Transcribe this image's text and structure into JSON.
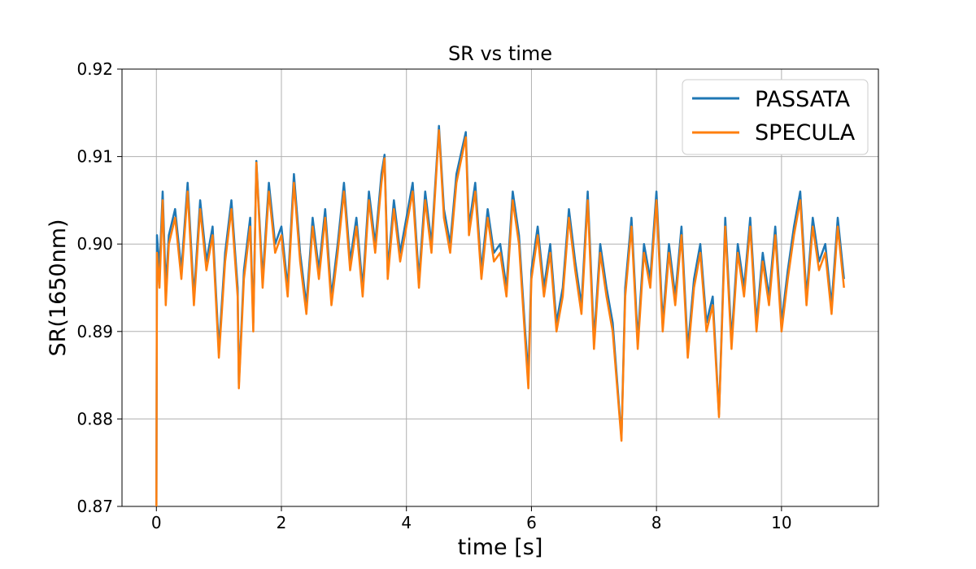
{
  "chart_data": {
    "type": "line",
    "title": "SR vs time",
    "xlabel": "time [s]",
    "ylabel": "SR(1650nm)",
    "xlim": [
      -0.55,
      11.55
    ],
    "ylim": [
      0.87,
      0.92
    ],
    "xticks": [
      0,
      2,
      4,
      6,
      8,
      10
    ],
    "yticks": [
      0.87,
      0.88,
      0.89,
      0.9,
      0.91,
      0.92
    ],
    "xtick_labels": [
      "0",
      "2",
      "4",
      "6",
      "8",
      "10"
    ],
    "ytick_labels": [
      "0.87",
      "0.88",
      "0.89",
      "0.90",
      "0.91",
      "0.92"
    ],
    "grid": true,
    "legend_position": "top-right",
    "series": [
      {
        "name": "PASSATA",
        "color": "#1f77b4",
        "x": [
          0.0,
          0.01,
          0.05,
          0.1,
          0.15,
          0.2,
          0.3,
          0.4,
          0.5,
          0.6,
          0.7,
          0.8,
          0.9,
          1.0,
          1.1,
          1.2,
          1.3,
          1.32,
          1.4,
          1.5,
          1.55,
          1.6,
          1.7,
          1.8,
          1.9,
          2.0,
          2.1,
          2.2,
          2.3,
          2.4,
          2.5,
          2.6,
          2.7,
          2.8,
          2.9,
          3.0,
          3.1,
          3.2,
          3.3,
          3.4,
          3.5,
          3.6,
          3.65,
          3.7,
          3.8,
          3.9,
          4.0,
          4.1,
          4.2,
          4.3,
          4.4,
          4.52,
          4.6,
          4.7,
          4.8,
          4.95,
          5.0,
          5.1,
          5.2,
          5.3,
          5.4,
          5.5,
          5.6,
          5.7,
          5.8,
          5.9,
          5.95,
          6.0,
          6.1,
          6.2,
          6.3,
          6.4,
          6.5,
          6.6,
          6.7,
          6.8,
          6.9,
          7.0,
          7.1,
          7.2,
          7.3,
          7.44,
          7.5,
          7.6,
          7.7,
          7.8,
          7.9,
          8.0,
          8.1,
          8.2,
          8.3,
          8.4,
          8.5,
          8.6,
          8.7,
          8.8,
          8.9,
          9.0,
          9.1,
          9.2,
          9.3,
          9.4,
          9.5,
          9.6,
          9.7,
          9.8,
          9.9,
          10.0,
          10.1,
          10.2,
          10.3,
          10.4,
          10.5,
          10.6,
          10.7,
          10.8,
          10.9,
          11.0
        ],
        "values": [
          0.87,
          0.901,
          0.897,
          0.906,
          0.895,
          0.901,
          0.904,
          0.897,
          0.907,
          0.894,
          0.905,
          0.898,
          0.902,
          0.888,
          0.899,
          0.905,
          0.895,
          0.884,
          0.897,
          0.903,
          0.891,
          0.9095,
          0.896,
          0.907,
          0.9,
          0.902,
          0.895,
          0.908,
          0.899,
          0.893,
          0.903,
          0.897,
          0.904,
          0.894,
          0.9,
          0.907,
          0.898,
          0.903,
          0.895,
          0.906,
          0.9,
          0.908,
          0.9102,
          0.897,
          0.905,
          0.899,
          0.903,
          0.907,
          0.896,
          0.906,
          0.9,
          0.9135,
          0.904,
          0.9,
          0.908,
          0.9128,
          0.902,
          0.907,
          0.897,
          0.904,
          0.899,
          0.9,
          0.895,
          0.906,
          0.901,
          0.89,
          0.885,
          0.897,
          0.902,
          0.895,
          0.9,
          0.891,
          0.895,
          0.904,
          0.898,
          0.893,
          0.906,
          0.889,
          0.9,
          0.895,
          0.891,
          0.8778,
          0.895,
          0.903,
          0.889,
          0.9,
          0.896,
          0.906,
          0.891,
          0.9,
          0.894,
          0.902,
          0.888,
          0.896,
          0.9,
          0.891,
          0.894,
          0.8805,
          0.903,
          0.889,
          0.9,
          0.895,
          0.903,
          0.891,
          0.899,
          0.894,
          0.902,
          0.891,
          0.897,
          0.902,
          0.906,
          0.894,
          0.903,
          0.898,
          0.9,
          0.893,
          0.903,
          0.896
        ]
      },
      {
        "name": "SPECULA",
        "color": "#ff7f0e",
        "x": [
          0.0,
          0.01,
          0.05,
          0.1,
          0.15,
          0.2,
          0.3,
          0.4,
          0.5,
          0.6,
          0.7,
          0.8,
          0.9,
          1.0,
          1.1,
          1.2,
          1.3,
          1.32,
          1.4,
          1.5,
          1.55,
          1.6,
          1.7,
          1.8,
          1.9,
          2.0,
          2.1,
          2.2,
          2.3,
          2.4,
          2.5,
          2.6,
          2.7,
          2.8,
          2.9,
          3.0,
          3.1,
          3.2,
          3.3,
          3.4,
          3.5,
          3.6,
          3.65,
          3.7,
          3.8,
          3.9,
          4.0,
          4.1,
          4.2,
          4.3,
          4.4,
          4.52,
          4.6,
          4.7,
          4.8,
          4.95,
          5.0,
          5.1,
          5.2,
          5.3,
          5.4,
          5.5,
          5.6,
          5.7,
          5.8,
          5.9,
          5.95,
          6.0,
          6.1,
          6.2,
          6.3,
          6.4,
          6.5,
          6.6,
          6.7,
          6.8,
          6.9,
          7.0,
          7.1,
          7.2,
          7.3,
          7.44,
          7.5,
          7.6,
          7.7,
          7.8,
          7.9,
          8.0,
          8.1,
          8.2,
          8.3,
          8.4,
          8.5,
          8.6,
          8.7,
          8.8,
          8.9,
          9.0,
          9.1,
          9.2,
          9.3,
          9.4,
          9.5,
          9.6,
          9.7,
          9.8,
          9.9,
          10.0,
          10.1,
          10.2,
          10.3,
          10.4,
          10.5,
          10.6,
          10.7,
          10.8,
          10.9,
          11.0
        ],
        "values": [
          0.87,
          0.899,
          0.895,
          0.905,
          0.893,
          0.9,
          0.903,
          0.896,
          0.906,
          0.893,
          0.904,
          0.897,
          0.901,
          0.887,
          0.898,
          0.904,
          0.894,
          0.8835,
          0.896,
          0.902,
          0.89,
          0.9093,
          0.895,
          0.906,
          0.899,
          0.901,
          0.894,
          0.907,
          0.898,
          0.892,
          0.902,
          0.896,
          0.903,
          0.893,
          0.899,
          0.906,
          0.897,
          0.902,
          0.894,
          0.905,
          0.899,
          0.907,
          0.9098,
          0.896,
          0.904,
          0.898,
          0.902,
          0.906,
          0.895,
          0.905,
          0.899,
          0.913,
          0.903,
          0.899,
          0.907,
          0.9122,
          0.901,
          0.906,
          0.896,
          0.903,
          0.898,
          0.899,
          0.894,
          0.905,
          0.9,
          0.889,
          0.8835,
          0.896,
          0.901,
          0.894,
          0.899,
          0.89,
          0.894,
          0.903,
          0.897,
          0.892,
          0.905,
          0.888,
          0.899,
          0.894,
          0.89,
          0.8775,
          0.894,
          0.902,
          0.888,
          0.899,
          0.895,
          0.905,
          0.89,
          0.899,
          0.893,
          0.901,
          0.887,
          0.895,
          0.899,
          0.89,
          0.893,
          0.8802,
          0.902,
          0.888,
          0.899,
          0.894,
          0.902,
          0.89,
          0.898,
          0.893,
          0.901,
          0.89,
          0.896,
          0.901,
          0.905,
          0.893,
          0.902,
          0.897,
          0.899,
          0.892,
          0.902,
          0.895
        ]
      }
    ]
  }
}
